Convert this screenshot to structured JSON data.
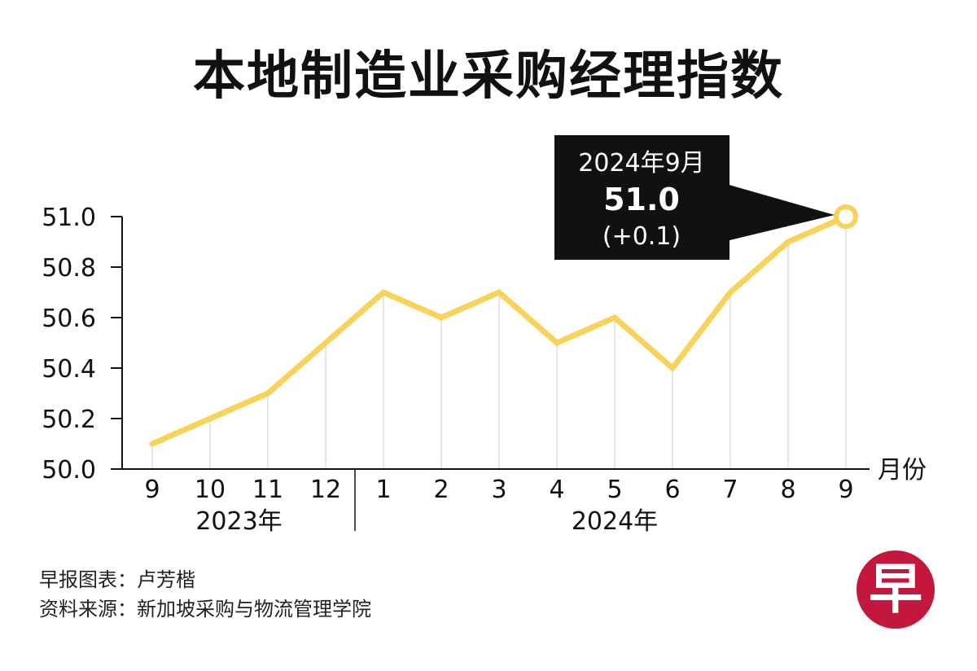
{
  "title": "本地制造业采购经理指数",
  "credits": {
    "graphic_label": "早报图表：",
    "graphic_author": "卢芳楷",
    "source_label": "资料来源：",
    "source_name": "新加坡采购与物流管理学院"
  },
  "logo_char": "早",
  "colors": {
    "line": "#f7d35a",
    "callout_bg": "#111111",
    "axis": "#111111",
    "grid": "#cccccc",
    "logo": "#c4173e"
  },
  "callout": {
    "date": "2024年9月",
    "value": "51.0",
    "change": "(+0.1)"
  },
  "chart_data": {
    "type": "line",
    "title": "本地制造业采购经理指数",
    "xlabel": "月份",
    "ylabel": "",
    "ylim": [
      50.0,
      51.0
    ],
    "yticks": [
      "50.0",
      "50.2",
      "50.4",
      "50.6",
      "50.8",
      "51.0"
    ],
    "categories": [
      "9",
      "10",
      "11",
      "12",
      "1",
      "2",
      "3",
      "4",
      "5",
      "6",
      "7",
      "8",
      "9"
    ],
    "year_groups": [
      {
        "label": "2023年",
        "start": 0,
        "end": 3
      },
      {
        "label": "2024年",
        "start": 4,
        "end": 12
      }
    ],
    "series": [
      {
        "values": [
          50.1,
          50.2,
          50.3,
          50.5,
          50.7,
          50.6,
          50.7,
          50.5,
          50.6,
          50.4,
          50.7,
          50.9,
          51.0
        ]
      }
    ],
    "grid": "vertical",
    "highlight_index": 12
  }
}
